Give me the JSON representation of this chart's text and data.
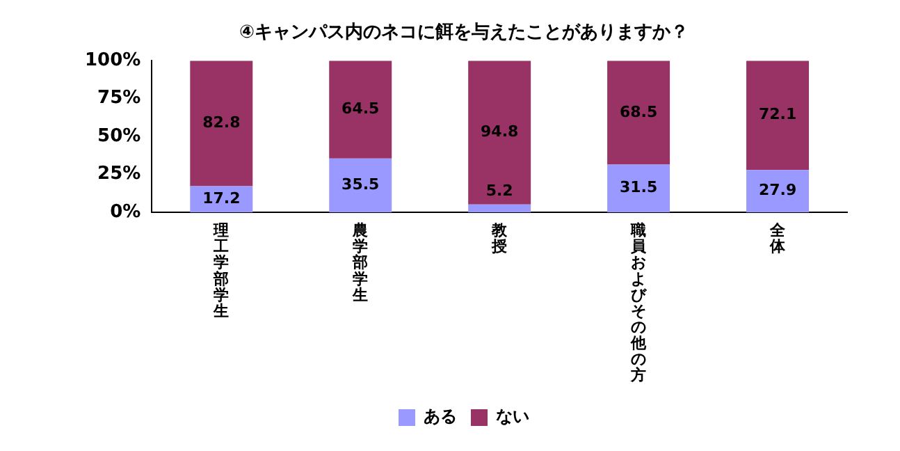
{
  "chart_data": {
    "type": "bar",
    "title": "④キャンパス内のネコに餌を与えたことがありますか？",
    "categories": [
      "理工学部学生",
      "農学部学生",
      "教授",
      "職員およびその他の方",
      "全体"
    ],
    "series": [
      {
        "name": "ある",
        "color": "#9999ff",
        "values": [
          17.2,
          35.5,
          5.2,
          31.5,
          27.9
        ]
      },
      {
        "name": "ない",
        "color": "#993366",
        "values": [
          82.8,
          64.5,
          94.8,
          68.5,
          72.1
        ]
      }
    ],
    "stacked": true,
    "data_labels": true,
    "ylim": [
      0,
      100
    ],
    "yticks": [
      {
        "value": 0,
        "label": "0%"
      },
      {
        "value": 25,
        "label": "25%"
      },
      {
        "value": 50,
        "label": "50%"
      },
      {
        "value": 75,
        "label": "75%"
      },
      {
        "value": 100,
        "label": "100%"
      }
    ],
    "grid": false,
    "legend": "bottom"
  }
}
